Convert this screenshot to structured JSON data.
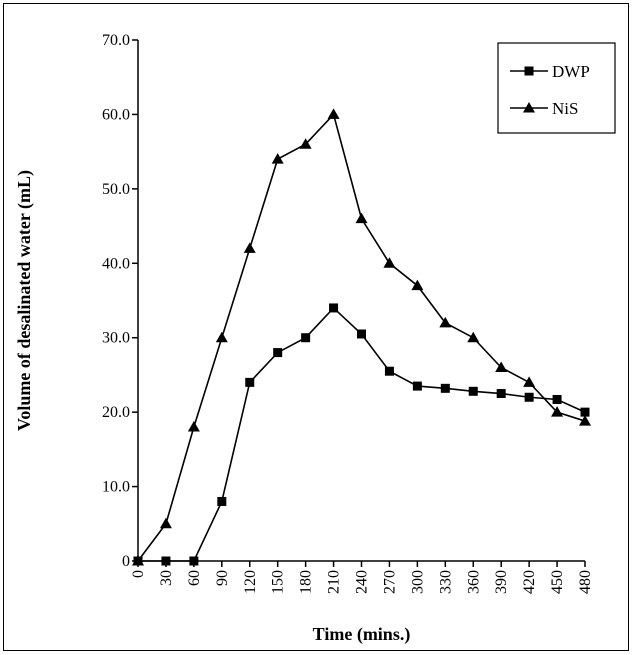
{
  "chart_data": {
    "type": "line",
    "xlabel": "Time (mins.)",
    "ylabel": "Volume of desalinated water (mL)",
    "x": [
      0,
      30,
      60,
      90,
      120,
      150,
      180,
      210,
      240,
      270,
      300,
      330,
      360,
      390,
      420,
      450,
      480
    ],
    "x_tick_labels": [
      "0",
      "30",
      "60",
      "90",
      "120",
      "150",
      "180",
      "210",
      "240",
      "270",
      "300",
      "330",
      "360",
      "390",
      "420",
      "450",
      "480"
    ],
    "y_tick_labels": [
      "0",
      "10.0",
      "20.0",
      "30.0",
      "40.0",
      "50.0",
      "60.0",
      "70.0"
    ],
    "y_ticks": [
      0,
      10,
      20,
      30,
      40,
      50,
      60,
      70
    ],
    "xlim": [
      0,
      480
    ],
    "ylim": [
      0,
      70
    ],
    "grid": false,
    "legend_position": "top-right",
    "series": [
      {
        "name": "DWP",
        "marker": "square",
        "values": [
          0,
          0,
          0,
          8,
          24,
          28,
          30,
          34,
          30.5,
          25.5,
          23.5,
          23.2,
          22.8,
          22.5,
          22,
          21.7,
          20
        ]
      },
      {
        "name": "NiS",
        "marker": "triangle",
        "values": [
          0,
          5,
          18,
          30,
          42,
          54,
          56,
          60,
          46,
          40,
          37,
          32,
          30,
          26,
          24,
          20,
          18.8
        ]
      }
    ]
  },
  "colors": {
    "line": "#000000",
    "background": "#ffffff"
  }
}
